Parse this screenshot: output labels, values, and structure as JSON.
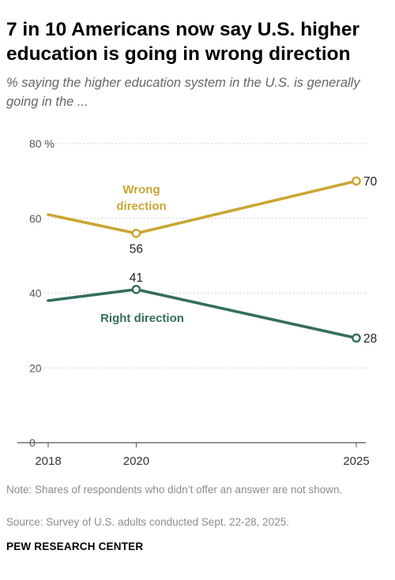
{
  "header": {
    "title": "7 in 10 Americans now say U.S. higher education is going in wrong direction",
    "subtitle": "% saying the higher education system in the U.S. is generally going in the ..."
  },
  "footer": {
    "note": "Note: Shares of respondents who didn’t offer an answer are not shown.",
    "source": "Source: Survey of U.S. adults conducted Sept. 22-28, 2025.",
    "brand": "PEW RESEARCH CENTER"
  },
  "chart_data": {
    "type": "line",
    "title": "7 in 10 Americans now say U.S. higher education is going in wrong direction",
    "subtitle": "% saying the higher education system in the U.S. is generally going in the ...",
    "x": [
      2018,
      2020,
      2025
    ],
    "x_tick_labels": [
      "2018",
      "2020",
      "2025"
    ],
    "ylim": [
      0,
      80
    ],
    "y_ticks": [
      0,
      20,
      40,
      60,
      80
    ],
    "y_tick_labels": [
      "0",
      "20",
      "40",
      "60",
      "80 %"
    ],
    "grid": true,
    "legend": "inline labels",
    "series": [
      {
        "name": "Wrong direction",
        "color": "#c9a633",
        "values": [
          61,
          56,
          70
        ],
        "labeled": [
          false,
          true,
          true
        ],
        "label_lines": [
          "Wrong",
          "direction"
        ]
      },
      {
        "name": "Right direction",
        "color": "#346e5e",
        "values": [
          38,
          41,
          28
        ],
        "labeled": [
          false,
          true,
          true
        ],
        "label_lines": [
          "Right direction"
        ]
      }
    ]
  }
}
